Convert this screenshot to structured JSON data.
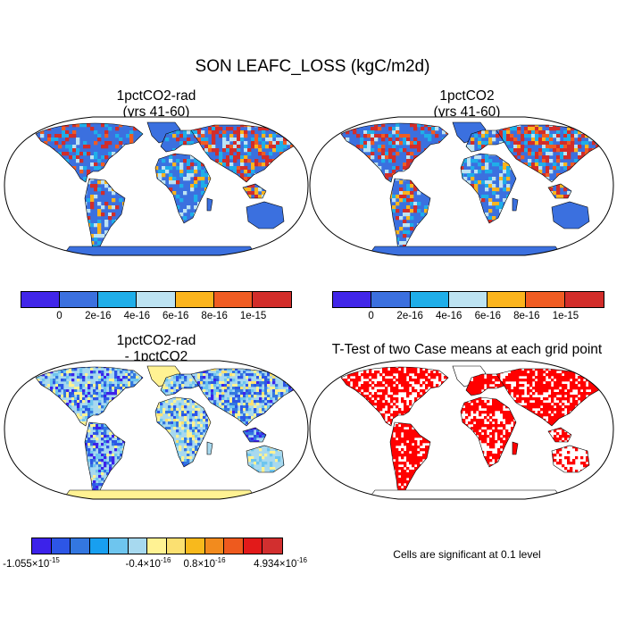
{
  "title": "SON LEAFC_LOSS (kgC/m2d)",
  "panels": [
    {
      "title_line1": "1pctCO2-rad",
      "title_line2": "(yrs 41-60)"
    },
    {
      "title_line1": "1pctCO2",
      "title_line2": "(yrs 41-60)"
    },
    {
      "title_line1": "1pctCO2-rad",
      "title_line2": "- 1pctCO2"
    },
    {
      "title_line1": "T-Test of two Case means at each grid point"
    }
  ],
  "colorbar_main": {
    "colors": [
      "#4126e9",
      "#3b70df",
      "#1faee9",
      "#bde3f2",
      "#fbb41d",
      "#f05c22",
      "#d22d2a"
    ],
    "labels": [
      "0",
      "2e-16",
      "4e-16",
      "6e-16",
      "8e-16",
      "1e-15"
    ]
  },
  "colorbar_diff": {
    "colors": [
      "#3c22ea",
      "#2d56e6",
      "#3377e0",
      "#189ff0",
      "#6ec5ee",
      "#a7d9ef",
      "#fff293",
      "#fbe071",
      "#f8b91c",
      "#f28b1e",
      "#ee5a1e",
      "#e21a1a",
      "#d22f2f"
    ],
    "labels": [
      {
        "mant": "-1.055",
        "exp": "-15"
      },
      {
        "mant": "-0.4",
        "exp": "-16"
      },
      {
        "mant": "0.8",
        "exp": "-16"
      },
      {
        "mant": "4.934",
        "exp": "-16"
      }
    ]
  },
  "ttest_note": "Cells are significant at 0.1 level",
  "chart_data": [
    {
      "type": "heatmap",
      "title": "1pctCO2-rad (yrs 41-60)",
      "legend": "bottom",
      "colorbar_labels": [
        "0",
        "2e-16",
        "4e-16",
        "6e-16",
        "8e-16",
        "1e-15"
      ],
      "projection": "Robinson"
    },
    {
      "type": "heatmap",
      "title": "1pctCO2 (yrs 41-60)",
      "legend": "bottom",
      "colorbar_labels": [
        "0",
        "2e-16",
        "4e-16",
        "6e-16",
        "8e-16",
        "1e-15"
      ],
      "projection": "Robinson"
    },
    {
      "type": "heatmap",
      "title": "1pctCO2-rad - 1pctCO2",
      "legend": "bottom",
      "colorbar_labels": [
        "-1.055×10^-15",
        "-0.4×10^-16",
        "0.8×10^-16",
        "4.934×10^-16"
      ],
      "projection": "Robinson"
    },
    {
      "type": "heatmap",
      "title": "T-Test of two Case means at each grid point",
      "annotation": "Cells are significant at 0.1 level",
      "projection": "Robinson"
    }
  ]
}
